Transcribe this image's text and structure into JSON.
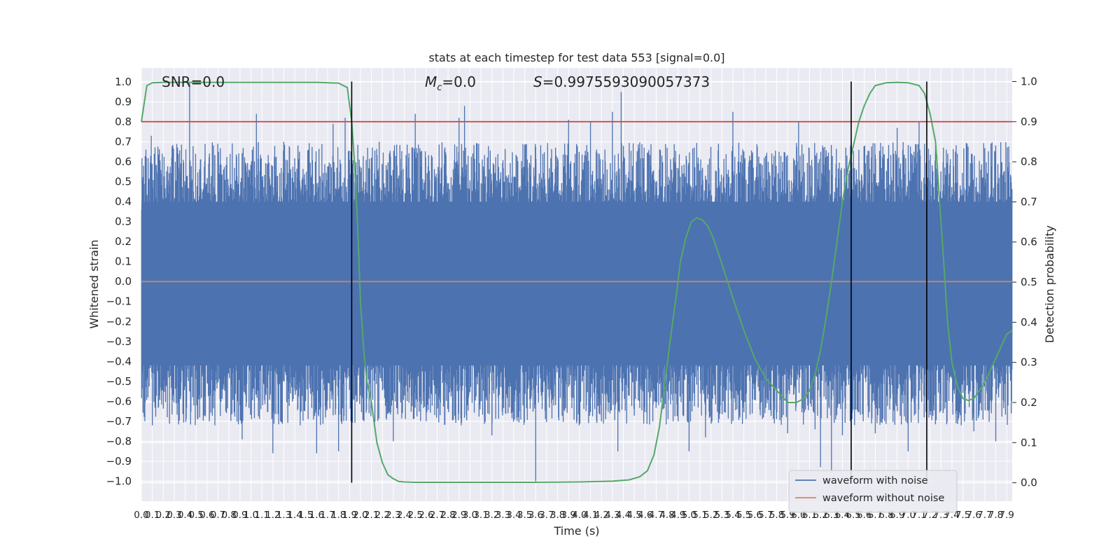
{
  "chart_data": {
    "type": "line",
    "title": "stats at each timestep for test data 553 [signal=0.0]",
    "xlabel": "Time (s)",
    "ylabel": "Whitened strain",
    "ylabel_right": "Detection probability",
    "xlim": [
      0,
      7.95
    ],
    "ylim": [
      -1.1,
      1.07
    ],
    "ylim_right": [
      -0.046,
      1.034
    ],
    "x_ticks": [
      0.0,
      0.1,
      0.2,
      0.3,
      0.4,
      0.5,
      0.6,
      0.7,
      0.8,
      0.9,
      1.0,
      1.1,
      1.2,
      1.3,
      1.4,
      1.5,
      1.6,
      1.7,
      1.8,
      1.9,
      2.0,
      2.1,
      2.2,
      2.3,
      2.4,
      2.5,
      2.6,
      2.7,
      2.8,
      2.9,
      3.0,
      3.1,
      3.2,
      3.3,
      3.4,
      3.5,
      3.6,
      3.7,
      3.8,
      3.9,
      4.0,
      4.1,
      4.2,
      4.3,
      4.4,
      4.5,
      4.6,
      4.7,
      4.8,
      4.9,
      5.0,
      5.1,
      5.2,
      5.3,
      5.4,
      5.5,
      5.6,
      5.7,
      5.8,
      5.9,
      6.0,
      6.1,
      6.2,
      6.3,
      6.4,
      6.5,
      6.6,
      6.7,
      6.8,
      6.9,
      7.0,
      7.1,
      7.2,
      7.3,
      7.4,
      7.5,
      7.6,
      7.7,
      7.8,
      7.9
    ],
    "x_tick_labels": [
      "0.0",
      "0.1",
      "0.2",
      "0.3",
      "0.4",
      "0.5",
      "0.6",
      "0.7",
      "0.8",
      "0.9",
      "1.0",
      "1.1",
      "1.2",
      "1.3",
      "1.4",
      "1.5",
      "1.6",
      "1.7",
      "1.8",
      "1.9",
      "2.0",
      "2.1",
      "2.2",
      "2.3",
      "2.4",
      "2.5",
      "2.6",
      "2.7",
      "2.8",
      "2.9",
      "3.0",
      "3.1",
      "3.2",
      "3.3",
      "3.4",
      "3.5",
      "3.6",
      "3.7",
      "3.8",
      "3.9",
      "4.0",
      "4.1",
      "4.2",
      "4.3",
      "4.4",
      "4.5",
      "4.6",
      "4.7",
      "4.8",
      "4.9",
      "5.0",
      "5.1",
      "5.2",
      "5.3",
      "5.4",
      "5.5",
      "5.6",
      "5.7",
      "5.8",
      "5.9",
      "6.0",
      "6.1",
      "6.2",
      "6.3",
      "6.4",
      "6.5",
      "6.6",
      "6.7",
      "6.8",
      "6.9",
      "7.0",
      "7.1",
      "7.2",
      "7.3",
      "7.4",
      "7.5",
      "7.6",
      "7.7",
      "7.8",
      "7.9"
    ],
    "y_ticks": [
      -1.0,
      -0.9,
      -0.8,
      -0.7,
      -0.6,
      -0.5,
      -0.4,
      -0.3,
      -0.2,
      -0.1,
      0.0,
      0.1,
      0.2,
      0.3,
      0.4,
      0.5,
      0.6,
      0.7,
      0.8,
      0.9,
      1.0
    ],
    "y_tick_labels": [
      "−1.0",
      "−0.9",
      "−0.8",
      "−0.7",
      "−0.6",
      "−0.5",
      "−0.4",
      "−0.3",
      "−0.2",
      "−0.1",
      "0.0",
      "0.1",
      "0.2",
      "0.3",
      "0.4",
      "0.5",
      "0.6",
      "0.7",
      "0.8",
      "0.9",
      "1.0"
    ],
    "y_ticks_right": [
      0.0,
      0.1,
      0.2,
      0.3,
      0.4,
      0.5,
      0.6,
      0.7,
      0.8,
      0.9,
      1.0
    ],
    "y_tick_labels_right": [
      "0.0",
      "0.1",
      "0.2",
      "0.3",
      "0.4",
      "0.5",
      "0.6",
      "0.7",
      "0.8",
      "0.9",
      "1.0"
    ],
    "grid": true,
    "legend_position": "bottom-right",
    "annotations": {
      "snr": "SNR=0.0",
      "mc_symbol": "M",
      "mc_sub": "c",
      "mc_value": "=0.0",
      "s_symbol": "S",
      "s_value": "=0.9975593090057373"
    },
    "series": [
      {
        "name": "waveform with noise",
        "color": "#4c72b0",
        "axis": "left",
        "style": "dense-noise",
        "core_band": [
          -0.42,
          0.4
        ],
        "peaks": [
          {
            "x": 0.02,
            "y": 0.58
          },
          {
            "x": 0.06,
            "y": -0.58
          },
          {
            "x": 0.09,
            "y": 0.73
          },
          {
            "x": 0.1,
            "y": -0.72
          },
          {
            "x": 0.19,
            "y": 0.64
          },
          {
            "x": 0.28,
            "y": -0.6
          },
          {
            "x": 0.33,
            "y": 0.67
          },
          {
            "x": 0.44,
            "y": 1.0
          },
          {
            "x": 0.44,
            "y": -0.55
          },
          {
            "x": 0.62,
            "y": -0.7
          },
          {
            "x": 0.67,
            "y": 0.63
          },
          {
            "x": 0.92,
            "y": -0.79
          },
          {
            "x": 1.05,
            "y": 0.84
          },
          {
            "x": 1.2,
            "y": -0.86
          },
          {
            "x": 1.3,
            "y": 0.7
          },
          {
            "x": 1.45,
            "y": -0.72
          },
          {
            "x": 1.6,
            "y": -0.86
          },
          {
            "x": 1.75,
            "y": 0.79
          },
          {
            "x": 1.8,
            "y": -0.85
          },
          {
            "x": 1.86,
            "y": 0.82
          },
          {
            "x": 1.95,
            "y": -0.6
          },
          {
            "x": 2.1,
            "y": 0.62
          },
          {
            "x": 2.3,
            "y": -0.8
          },
          {
            "x": 2.5,
            "y": 0.84
          },
          {
            "x": 2.6,
            "y": -0.7
          },
          {
            "x": 2.9,
            "y": 0.82
          },
          {
            "x": 2.95,
            "y": 0.88
          },
          {
            "x": 3.2,
            "y": -0.77
          },
          {
            "x": 3.6,
            "y": -1.0
          },
          {
            "x": 3.8,
            "y": 0.62
          },
          {
            "x": 3.9,
            "y": 0.81
          },
          {
            "x": 4.1,
            "y": 0.8
          },
          {
            "x": 4.2,
            "y": -0.7
          },
          {
            "x": 4.3,
            "y": 0.85
          },
          {
            "x": 4.35,
            "y": -0.85
          },
          {
            "x": 4.38,
            "y": 0.95
          },
          {
            "x": 4.8,
            "y": 0.67
          },
          {
            "x": 4.9,
            "y": -0.7
          },
          {
            "x": 5.0,
            "y": -0.85
          },
          {
            "x": 5.15,
            "y": -0.78
          },
          {
            "x": 5.4,
            "y": 0.85
          },
          {
            "x": 5.65,
            "y": -0.67
          },
          {
            "x": 5.9,
            "y": -0.76
          },
          {
            "x": 6.0,
            "y": 0.8
          },
          {
            "x": 6.15,
            "y": -0.74
          },
          {
            "x": 6.2,
            "y": -0.93
          },
          {
            "x": 6.3,
            "y": -0.96
          },
          {
            "x": 6.4,
            "y": -0.77
          },
          {
            "x": 6.55,
            "y": 0.66
          },
          {
            "x": 6.7,
            "y": -0.76
          },
          {
            "x": 6.9,
            "y": 0.77
          },
          {
            "x": 7.0,
            "y": -0.85
          },
          {
            "x": 7.1,
            "y": 0.8
          },
          {
            "x": 7.25,
            "y": 0.68
          },
          {
            "x": 7.45,
            "y": 0.64
          },
          {
            "x": 7.6,
            "y": -0.75
          },
          {
            "x": 7.8,
            "y": -0.8
          },
          {
            "x": 7.85,
            "y": 0.6
          }
        ]
      },
      {
        "name": "waveform without noise",
        "color": "#dd8452",
        "axis": "left",
        "x": [
          0,
          7.95
        ],
        "y": [
          0.0,
          0.0
        ]
      },
      {
        "color": "#55a868",
        "axis": "right",
        "x": [
          0.0,
          0.05,
          0.1,
          0.2,
          0.3,
          0.5,
          0.8,
          1.2,
          1.6,
          1.8,
          1.88,
          1.92,
          1.95,
          1.98,
          2.0,
          2.03,
          2.06,
          2.1,
          2.15,
          2.2,
          2.25,
          2.3,
          2.35,
          2.4,
          2.5,
          2.7,
          3.0,
          3.5,
          4.0,
          4.3,
          4.45,
          4.55,
          4.62,
          4.68,
          4.73,
          4.78,
          4.83,
          4.88,
          4.92,
          4.97,
          5.02,
          5.07,
          5.12,
          5.17,
          5.22,
          5.27,
          5.33,
          5.4,
          5.5,
          5.6,
          5.7,
          5.8,
          5.9,
          5.98,
          6.05,
          6.1,
          6.15,
          6.2,
          6.25,
          6.3,
          6.35,
          6.4,
          6.45,
          6.5,
          6.55,
          6.6,
          6.65,
          6.7,
          6.8,
          6.9,
          7.0,
          7.1,
          7.15,
          7.2,
          7.25,
          7.28,
          7.32,
          7.36,
          7.4,
          7.45,
          7.5,
          7.55,
          7.6,
          7.7,
          7.8,
          7.9,
          7.95
        ],
        "y": [
          0.9,
          0.99,
          0.997,
          0.998,
          0.998,
          0.998,
          0.998,
          0.998,
          0.998,
          0.996,
          0.985,
          0.9,
          0.78,
          0.6,
          0.45,
          0.33,
          0.25,
          0.2,
          0.1,
          0.05,
          0.02,
          0.01,
          0.003,
          0.002,
          0.001,
          0.001,
          0.001,
          0.001,
          0.002,
          0.004,
          0.007,
          0.015,
          0.03,
          0.07,
          0.14,
          0.25,
          0.36,
          0.46,
          0.55,
          0.61,
          0.65,
          0.66,
          0.655,
          0.64,
          0.61,
          0.57,
          0.52,
          0.46,
          0.38,
          0.31,
          0.26,
          0.23,
          0.2,
          0.2,
          0.21,
          0.23,
          0.27,
          0.33,
          0.41,
          0.5,
          0.6,
          0.7,
          0.78,
          0.84,
          0.9,
          0.94,
          0.97,
          0.99,
          0.997,
          0.998,
          0.997,
          0.99,
          0.97,
          0.92,
          0.85,
          0.73,
          0.57,
          0.4,
          0.3,
          0.24,
          0.21,
          0.205,
          0.21,
          0.25,
          0.31,
          0.37,
          0.38
        ]
      }
    ],
    "hlines": [
      {
        "axis": "right",
        "y": 0.9,
        "color": "#c44e52"
      }
    ],
    "vlines": [
      {
        "x": 1.92,
        "color": "#000000"
      },
      {
        "x": 6.48,
        "color": "#000000"
      },
      {
        "x": 7.17,
        "color": "#000000"
      }
    ]
  }
}
